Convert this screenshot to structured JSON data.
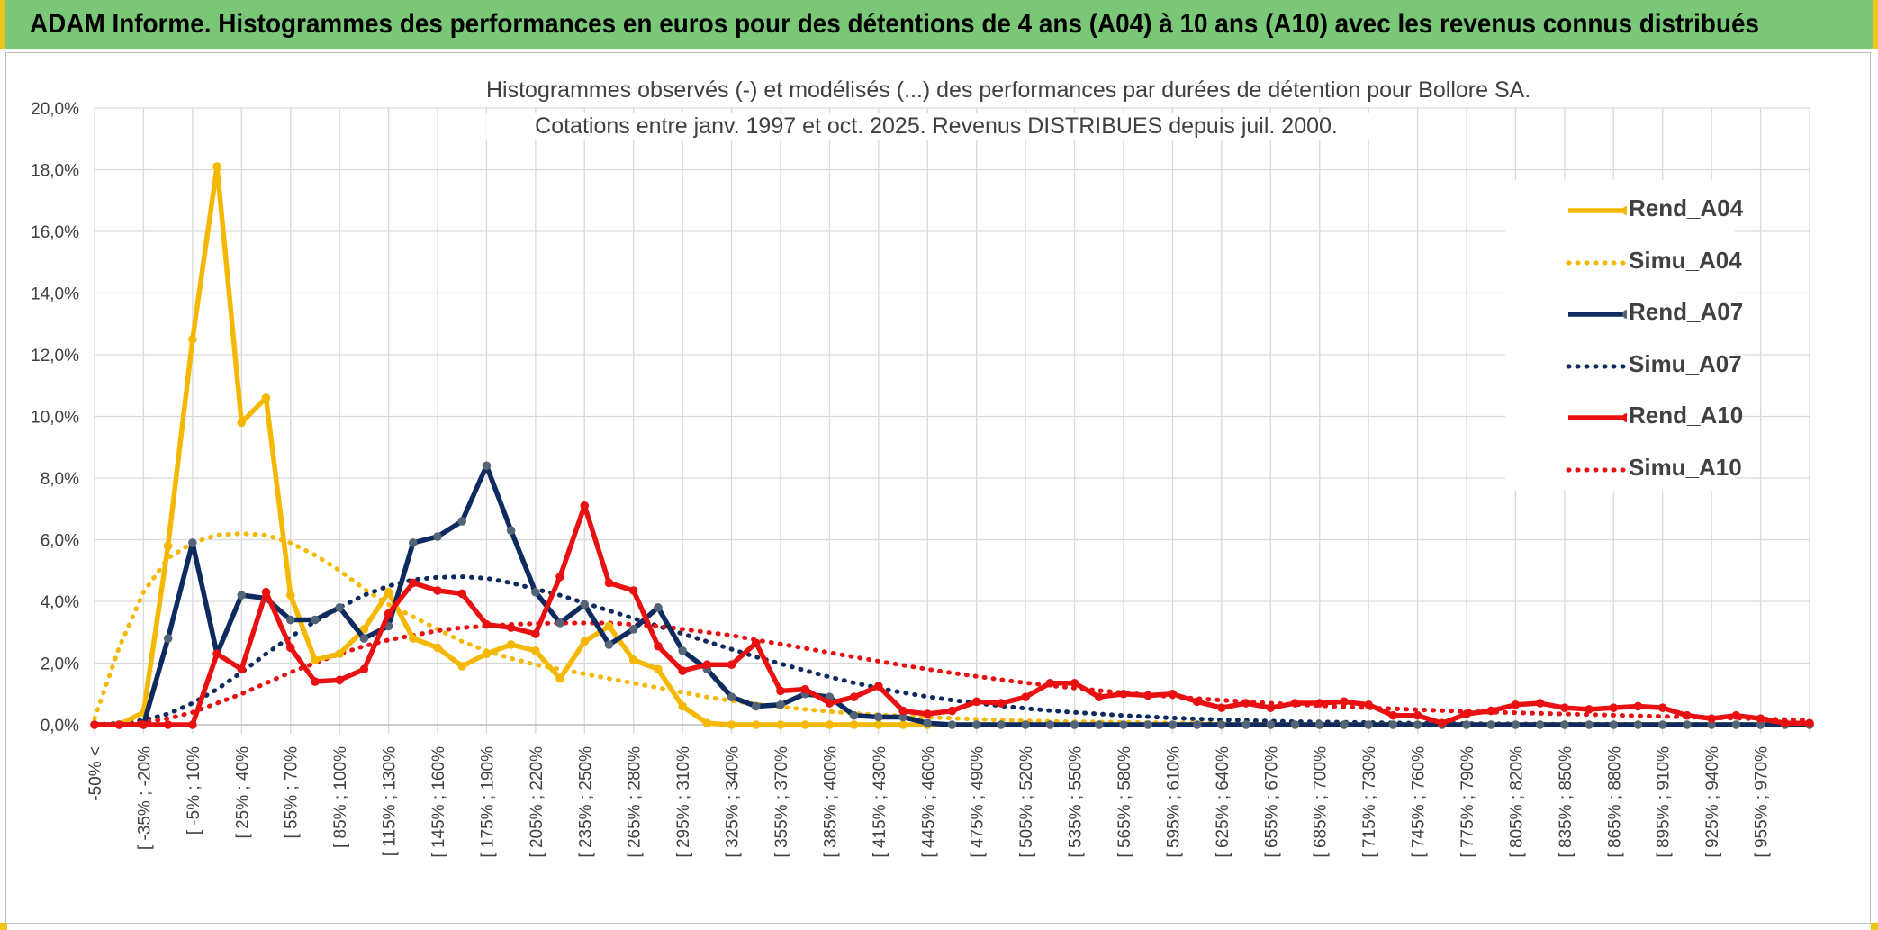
{
  "banner": {
    "title": "ADAM Informe. Histogrammes des performances en euros pour des détentions de 4 ans (A04) à 10 ans (A10) avec les revenus connus distribués"
  },
  "colors": {
    "banner_bg": "#79c777",
    "banner_border": "#f0c419",
    "A04": "#f5b800",
    "A07": "#0f2a5e",
    "A07_marker": "#546477",
    "A10": "#e81010"
  },
  "chart_data": {
    "type": "line",
    "title_line1": "Histogrammes observés (-) et modélisés (...) des performances par durées de détention pour Bollore SA.",
    "title_line2": "Cotations entre janv. 1997 et oct. 2025. Revenus DISTRIBUES depuis juil. 2000.",
    "ylim": [
      0,
      20
    ],
    "yticks": [
      "0,0%",
      "2,0%",
      "4,0%",
      "6,0%",
      "8,0%",
      "10,0%",
      "12,0%",
      "14,0%",
      "16,0%",
      "18,0%",
      "20,0%"
    ],
    "y_unit": "%",
    "grid": true,
    "legend_position": "right",
    "x_tick_labels": [
      "-50% <",
      "[ -35% ; -20%",
      "[ -5% ; 10%",
      "[ 25% ; 40%",
      "[ 55% ; 70%",
      "[ 85% ; 100%",
      "[ 115% ; 130%",
      "[ 145% ; 160%",
      "[ 175% ; 190%",
      "[ 205% ; 220%",
      "[ 235% ; 250%",
      "[ 265% ; 280%",
      "[ 295% ; 310%",
      "[ 325% ; 340%",
      "[ 355% ; 370%",
      "[ 385% ; 400%",
      "[ 415% ; 430%",
      "[ 445% ; 460%",
      "[ 475% ; 490%",
      "[ 505% ; 520%",
      "[ 535% ; 550%",
      "[ 565% ; 580%",
      "[ 595% ; 610%",
      "[ 625% ; 640%",
      "[ 655% ; 670%",
      "[ 685% ; 700%",
      "[ 715% ; 730%",
      "[ 745% ; 760%",
      "[ 775% ; 790%",
      "[ 805% ; 820%",
      "[ 835% ; 850%",
      "[ 865% ; 880%",
      "[ 895% ; 910%",
      "[ 925% ; 940%",
      "[ 955% ; 970%"
    ],
    "x_count": 71,
    "series": [
      {
        "name": "Rend_A04",
        "style": "solid",
        "color": "#f5b800",
        "values": [
          0,
          0,
          0.4,
          5.8,
          12.5,
          18.1,
          9.8,
          10.6,
          4.2,
          2.1,
          2.3,
          3.1,
          4.3,
          2.8,
          2.5,
          1.9,
          2.3,
          2.6,
          2.4,
          1.5,
          2.7,
          3.2,
          2.1,
          1.8,
          0.6,
          0.05,
          0,
          0,
          0,
          0,
          0,
          0,
          0,
          0,
          0,
          0,
          0,
          0,
          0,
          0,
          0,
          0,
          0,
          0,
          0,
          0,
          0,
          0,
          0,
          0,
          0,
          0,
          0,
          0,
          0,
          0,
          0,
          0,
          0,
          0,
          0,
          0,
          0,
          0,
          0,
          0,
          0,
          0,
          0,
          0,
          0
        ]
      },
      {
        "name": "Simu_A04",
        "style": "dotted",
        "color": "#f5b800",
        "values": [
          0.2,
          2.5,
          4.3,
          5.4,
          5.9,
          6.15,
          6.2,
          6.15,
          5.9,
          5.5,
          5.0,
          4.4,
          3.9,
          3.5,
          3.1,
          2.7,
          2.4,
          2.15,
          1.95,
          1.8,
          1.65,
          1.5,
          1.35,
          1.2,
          1.05,
          0.9,
          0.78,
          0.67,
          0.58,
          0.5,
          0.43,
          0.37,
          0.32,
          0.28,
          0.24,
          0.21,
          0.18,
          0.15,
          0.13,
          0.11,
          0.1,
          0.09,
          0.08,
          0.07,
          0.06,
          0.05,
          0.05,
          0.04,
          0.04,
          0.03,
          0.03,
          0.03,
          0.02,
          0.02,
          0.02,
          0.02,
          0.02,
          0.01,
          0.01,
          0.01,
          0.01,
          0.01,
          0.01,
          0.01,
          0.01,
          0.01,
          0.01,
          0.01,
          0.01,
          0.01,
          0.01
        ]
      },
      {
        "name": "Rend_A07",
        "style": "solid",
        "color": "#0f2a5e",
        "values": [
          0,
          0,
          0,
          2.8,
          5.9,
          2.3,
          4.2,
          4.1,
          3.4,
          3.4,
          3.8,
          2.8,
          3.2,
          5.9,
          6.1,
          6.6,
          8.4,
          6.3,
          4.3,
          3.3,
          3.9,
          2.6,
          3.1,
          3.8,
          2.4,
          1.8,
          0.9,
          0.6,
          0.65,
          1.0,
          0.9,
          0.3,
          0.25,
          0.25,
          0.05,
          0,
          0,
          0,
          0,
          0,
          0,
          0,
          0,
          0,
          0,
          0,
          0,
          0,
          0,
          0,
          0,
          0,
          0,
          0,
          0,
          0,
          0,
          0,
          0,
          0,
          0,
          0,
          0,
          0,
          0,
          0,
          0,
          0,
          0,
          0,
          0
        ]
      },
      {
        "name": "Simu_A07",
        "style": "dotted",
        "color": "#0f2a5e",
        "values": [
          0,
          0.05,
          0.15,
          0.35,
          0.7,
          1.15,
          1.7,
          2.3,
          2.85,
          3.35,
          3.8,
          4.2,
          4.5,
          4.7,
          4.78,
          4.8,
          4.75,
          4.6,
          4.4,
          4.2,
          3.95,
          3.7,
          3.45,
          3.2,
          2.95,
          2.7,
          2.45,
          2.2,
          1.98,
          1.76,
          1.55,
          1.36,
          1.19,
          1.04,
          0.91,
          0.8,
          0.7,
          0.61,
          0.53,
          0.46,
          0.4,
          0.35,
          0.3,
          0.26,
          0.22,
          0.19,
          0.16,
          0.14,
          0.12,
          0.1,
          0.09,
          0.08,
          0.07,
          0.06,
          0.05,
          0.04,
          0.04,
          0.03,
          0.03,
          0.02,
          0.02,
          0.02,
          0.02,
          0.01,
          0.01,
          0.01,
          0.01,
          0.01,
          0.01,
          0.01,
          0.01
        ]
      },
      {
        "name": "Rend_A10",
        "style": "solid",
        "color": "#e81010",
        "values": [
          0,
          0,
          0,
          0,
          0,
          2.3,
          1.8,
          4.3,
          2.5,
          1.4,
          1.45,
          1.8,
          3.6,
          4.6,
          4.35,
          4.25,
          3.25,
          3.15,
          2.95,
          4.8,
          7.1,
          4.6,
          4.35,
          2.55,
          1.75,
          1.95,
          1.95,
          2.65,
          1.1,
          1.15,
          0.7,
          0.9,
          1.25,
          0.45,
          0.35,
          0.45,
          0.75,
          0.7,
          0.9,
          1.35,
          1.35,
          0.9,
          1.0,
          0.95,
          1.0,
          0.75,
          0.55,
          0.7,
          0.55,
          0.7,
          0.7,
          0.75,
          0.65,
          0.3,
          0.3,
          0.05,
          0.35,
          0.45,
          0.65,
          0.7,
          0.55,
          0.5,
          0.55,
          0.6,
          0.55,
          0.3,
          0.2,
          0.3,
          0.2,
          0.05,
          0.05
        ]
      },
      {
        "name": "Simu_A10",
        "style": "dotted",
        "color": "#e81010",
        "values": [
          0,
          0.02,
          0.08,
          0.2,
          0.4,
          0.7,
          1.0,
          1.35,
          1.7,
          2.0,
          2.3,
          2.55,
          2.75,
          2.9,
          3.05,
          3.15,
          3.2,
          3.25,
          3.28,
          3.3,
          3.3,
          3.3,
          3.25,
          3.2,
          3.1,
          3.0,
          2.9,
          2.75,
          2.62,
          2.48,
          2.34,
          2.2,
          2.06,
          1.93,
          1.8,
          1.68,
          1.57,
          1.46,
          1.36,
          1.27,
          1.19,
          1.11,
          1.04,
          0.97,
          0.91,
          0.85,
          0.8,
          0.75,
          0.7,
          0.66,
          0.62,
          0.58,
          0.55,
          0.52,
          0.49,
          0.46,
          0.43,
          0.41,
          0.39,
          0.37,
          0.35,
          0.33,
          0.31,
          0.29,
          0.27,
          0.25,
          0.23,
          0.21,
          0.19,
          0.17,
          0.15
        ]
      }
    ]
  }
}
